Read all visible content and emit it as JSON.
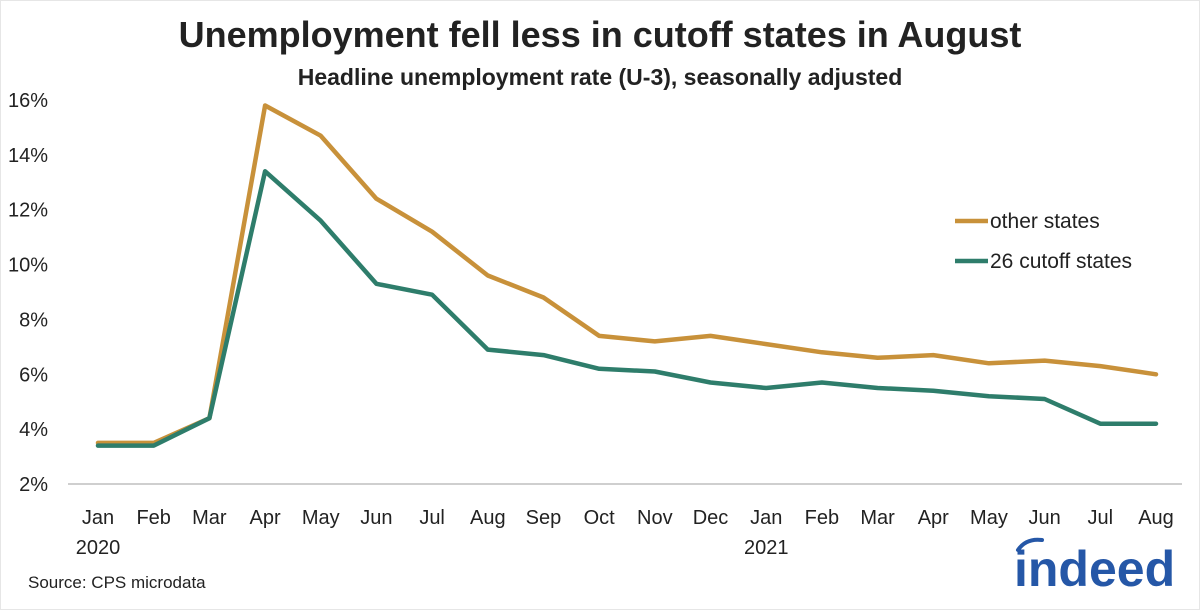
{
  "title": "Unemployment fell less in cutoff states in August",
  "subtitle": "Headline unemployment rate (U-3), seasonally adjusted",
  "source": "Source: CPS microdata",
  "logo_text": "indeed",
  "colors": {
    "other": "#c8913a",
    "cutoff": "#2e7d6b",
    "logo": "#2557a7",
    "axis": "#bfbfbf"
  },
  "chart_data": {
    "type": "line",
    "title": "Unemployment fell less in cutoff states in August",
    "subtitle": "Headline unemployment rate (U-3), seasonally adjusted",
    "xlabel": "",
    "ylabel": "",
    "ylim": [
      2,
      16
    ],
    "yticks": [
      "2%",
      "4%",
      "6%",
      "8%",
      "10%",
      "12%",
      "14%",
      "16%"
    ],
    "ytick_values": [
      2,
      4,
      6,
      8,
      10,
      12,
      14,
      16
    ],
    "categories": [
      "Jan",
      "Feb",
      "Mar",
      "Apr",
      "May",
      "Jun",
      "Jul",
      "Aug",
      "Sep",
      "Oct",
      "Nov",
      "Dec",
      "Jan",
      "Feb",
      "Mar",
      "Apr",
      "May",
      "Jun",
      "Jul",
      "Aug"
    ],
    "year_labels": [
      {
        "index": 0,
        "text": "2020"
      },
      {
        "index": 12,
        "text": "2021"
      }
    ],
    "grid": false,
    "legend": "right",
    "series": [
      {
        "name": "other states",
        "color": "#c8913a",
        "values": [
          3.5,
          3.5,
          4.4,
          15.8,
          14.7,
          12.4,
          11.2,
          9.6,
          8.8,
          7.4,
          7.2,
          7.4,
          7.1,
          6.8,
          6.6,
          6.7,
          6.4,
          6.5,
          6.3,
          6.0
        ]
      },
      {
        "name": "26 cutoff states",
        "color": "#2e7d6b",
        "values": [
          3.4,
          3.4,
          4.4,
          13.4,
          11.6,
          9.3,
          8.9,
          6.9,
          6.7,
          6.2,
          6.1,
          5.7,
          5.5,
          5.7,
          5.5,
          5.4,
          5.2,
          5.1,
          4.2,
          4.2
        ]
      }
    ]
  }
}
